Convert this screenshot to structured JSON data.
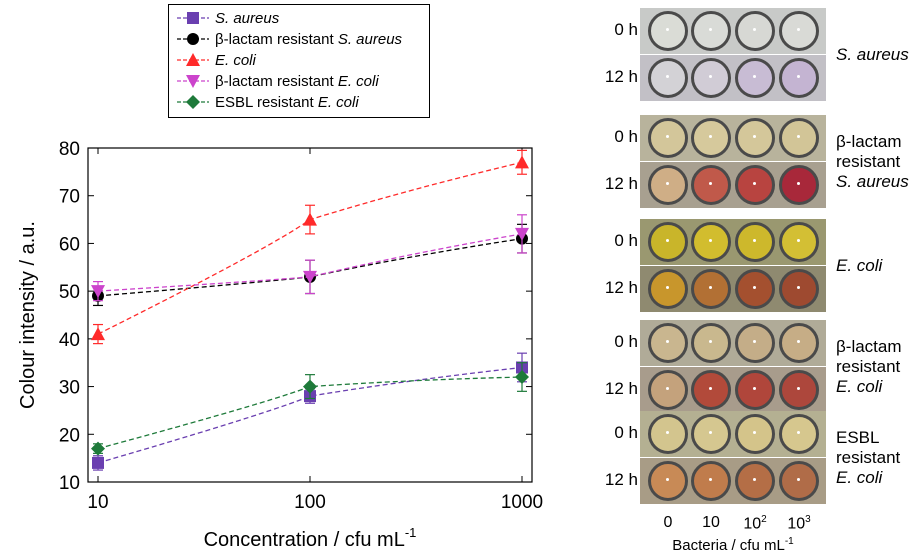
{
  "chart_data": {
    "type": "scatter",
    "xscale": "log",
    "x": [
      10,
      100,
      1000
    ],
    "xlim": [
      10,
      1000
    ],
    "ylim": [
      10,
      80
    ],
    "xticks": [
      "10",
      "100",
      "1000"
    ],
    "yticks": [
      "10",
      "20",
      "30",
      "40",
      "50",
      "60",
      "70",
      "80"
    ],
    "xlabel": "Concentration / cfu mL",
    "xlabel_sup": "-1",
    "ylabel": "Colour intensity / a.u.",
    "legend_position": "top-left",
    "series": [
      {
        "name": "S. aureus",
        "name_parts": [
          [
            "S. aureus",
            true
          ]
        ],
        "color": "#6a3fb0",
        "marker": "square",
        "values": [
          14,
          28,
          34
        ],
        "errors": [
          1.5,
          1.5,
          3
        ]
      },
      {
        "name": "β-lactam resistant S. aureus",
        "name_parts": [
          [
            "β-lactam resistant ",
            false
          ],
          [
            "S. aureus",
            true
          ]
        ],
        "color": "#000000",
        "marker": "circle",
        "values": [
          49,
          53,
          61
        ],
        "errors": [
          2,
          3.5,
          3
        ]
      },
      {
        "name": "E. coli",
        "name_parts": [
          [
            "E. coli",
            true
          ]
        ],
        "color": "#ff2a2a",
        "marker": "triangle-up",
        "values": [
          41,
          65,
          77
        ],
        "errors": [
          2,
          3,
          2.5
        ]
      },
      {
        "name": "β-lactam resistant E. coli",
        "name_parts": [
          [
            "β-lactam resistant ",
            false
          ],
          [
            "E. coli",
            true
          ]
        ],
        "color": "#cc44cc",
        "marker": "triangle-down",
        "values": [
          50,
          53,
          62
        ],
        "errors": [
          2,
          3.5,
          4
        ]
      },
      {
        "name": "ESBL resistant E. coli",
        "name_parts": [
          [
            "ESBL resistant ",
            false
          ],
          [
            "E. coli",
            true
          ]
        ],
        "color": "#1e7a3a",
        "marker": "diamond",
        "values": [
          17,
          30,
          32
        ],
        "errors": [
          1,
          2.5,
          3
        ]
      }
    ]
  },
  "photo_panel": {
    "time_labels": [
      "0 h",
      "12 h"
    ],
    "x_categories": [
      "0",
      "10",
      "10",
      "10"
    ],
    "x_category_sups": [
      "",
      "",
      "2",
      "3"
    ],
    "x_title": "Bacteria / cfu mL",
    "x_title_sup": "-1",
    "groups": [
      {
        "label_lines": [
          [
            "S. aureus",
            true
          ]
        ],
        "rows": [
          {
            "bg": "#c8cac8",
            "wells": [
              "#dadcd6",
              "#d9dbd7",
              "#d7d8d4",
              "#d9dad6"
            ]
          },
          {
            "bg": "#c2c0c6",
            "wells": [
              "#d3d2d6",
              "#d1ccd6",
              "#c8bcd4",
              "#c4b4d2"
            ]
          }
        ]
      },
      {
        "label_lines": [
          [
            "β-lactam",
            false
          ],
          [
            "resistant",
            false
          ],
          [
            "S. aureus",
            true
          ]
        ],
        "rows": [
          {
            "bg": "#b8b39c",
            "wells": [
              "#d3c69a",
              "#d6c99c",
              "#d4c79a",
              "#d2c597"
            ]
          },
          {
            "bg": "#a8a090",
            "wells": [
              "#cfae86",
              "#c0594a",
              "#b84440",
              "#a8283a"
            ]
          }
        ]
      },
      {
        "label_lines": [
          [
            "E. coli",
            true
          ]
        ],
        "rows": [
          {
            "bg": "#9a9870",
            "wells": [
              "#c9b52a",
              "#d2bd2e",
              "#cdb82c",
              "#d3bf34"
            ]
          },
          {
            "bg": "#8f8a70",
            "wells": [
              "#c8962c",
              "#b27034",
              "#a4502f",
              "#9e4a30"
            ]
          }
        ]
      },
      {
        "label_lines": [
          [
            "β-lactam",
            false
          ],
          [
            "resistant",
            false
          ],
          [
            "E. coli",
            true
          ]
        ],
        "rows": [
          {
            "bg": "#b0ab98",
            "wells": [
              "#c9b68f",
              "#c9b88e",
              "#c4ad88",
              "#c6ad86"
            ]
          },
          {
            "bg": "#a89c8c",
            "wells": [
              "#c4a27c",
              "#b24a3a",
              "#b0463b",
              "#ad473c"
            ]
          }
        ]
      },
      {
        "label_lines": [
          [
            "ESBL",
            false
          ],
          [
            "resistant",
            false
          ],
          [
            "E. coli",
            true
          ]
        ],
        "rows": [
          {
            "bg": "#b4b092",
            "wells": [
              "#d3c58e",
              "#d5c790",
              "#d4c48a",
              "#d6c78e"
            ]
          },
          {
            "bg": "#a89c86",
            "wells": [
              "#c88a56",
              "#c07c4c",
              "#b46e46",
              "#b06c48"
            ]
          }
        ]
      }
    ]
  }
}
